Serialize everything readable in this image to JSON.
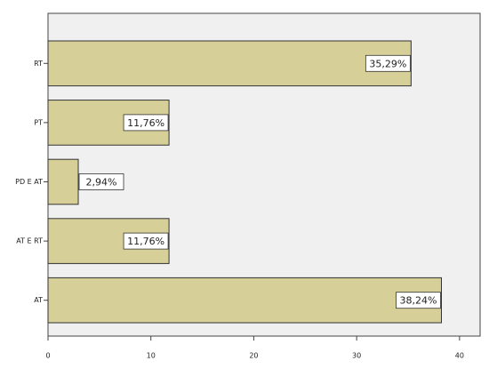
{
  "chart_data": {
    "type": "hbar",
    "categories": [
      "RT",
      "PT",
      "PD E AT",
      "AT E RT",
      "AT"
    ],
    "values": [
      35.29,
      11.76,
      2.94,
      11.76,
      38.24
    ],
    "value_labels": [
      "35,29%",
      "11,76%",
      "2,94%",
      "11,76%",
      "38,24%"
    ],
    "color": "#d6cf98",
    "xlim": [
      0,
      42
    ],
    "xticks": [
      0,
      10,
      20,
      30,
      40
    ]
  }
}
